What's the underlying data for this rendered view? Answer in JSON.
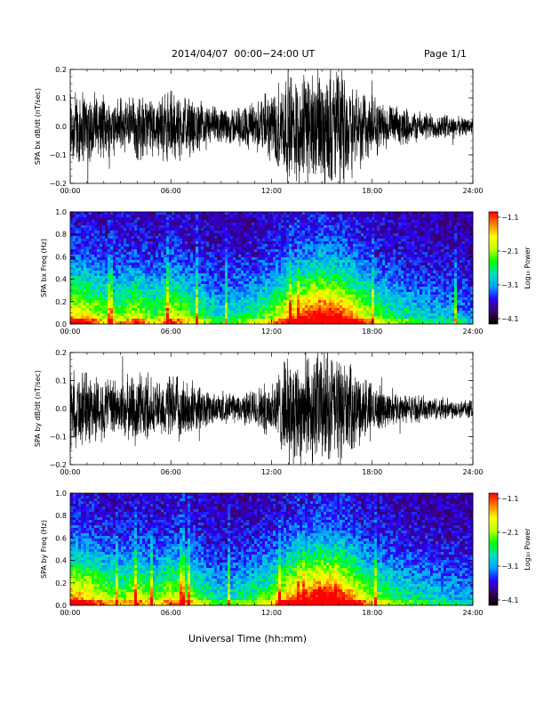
{
  "header": {
    "title": "2014/04/07  00:00−24:00 UT",
    "page": "Page 1/1"
  },
  "footer": {
    "xlabel": "Universal Time (hh:mm)"
  },
  "colors": {
    "waveform": "#000000",
    "colormap": [
      "#000000",
      "#3a0066",
      "#2a00ff",
      "#00a0ff",
      "#00e0c0",
      "#00ff00",
      "#c0ff00",
      "#ffff00",
      "#ff8000",
      "#ff0000"
    ]
  },
  "chart_data": [
    {
      "type": "line",
      "ylabel": "SPA bx dB/dt (nT/sec)",
      "x": [
        "00:00",
        "06:00",
        "12:00",
        "18:00",
        "24:00"
      ],
      "xlim_hours": [
        0,
        24
      ],
      "yticks": [
        "0.2",
        "0.1",
        "0.0",
        "−0.1",
        "−0.2"
      ],
      "ylim": [
        -0.2,
        0.2
      ],
      "activity_hours": [
        0,
        1,
        2,
        3,
        4,
        5,
        6,
        7,
        8,
        9,
        10,
        11,
        12,
        13,
        14,
        15,
        16,
        17,
        18,
        19,
        20,
        21,
        22,
        23,
        24
      ],
      "activity_amplitude": [
        0.15,
        0.13,
        0.1,
        0.1,
        0.12,
        0.09,
        0.13,
        0.1,
        0.08,
        0.06,
        0.07,
        0.09,
        0.12,
        0.2,
        0.2,
        0.2,
        0.2,
        0.16,
        0.11,
        0.07,
        0.06,
        0.05,
        0.045,
        0.035,
        0.03
      ],
      "grid": false
    },
    {
      "type": "heatmap",
      "ylabel": "SPA bx Freq (Hz)",
      "x": [
        "00:00",
        "06:00",
        "12:00",
        "18:00",
        "24:00"
      ],
      "xlim_hours": [
        0,
        24
      ],
      "yticks": [
        "1.0",
        "0.8",
        "0.6",
        "0.4",
        "0.2",
        "0.0"
      ],
      "ylim": [
        0,
        1
      ],
      "colorbar": {
        "label": "Log₁₀ Power",
        "ticks": [
          "−1.1",
          "−2.1",
          "−3.1",
          "−4.1"
        ],
        "range": [
          -4.1,
          -1.1
        ]
      },
      "activity_hours": [
        0,
        1,
        2,
        3,
        4,
        5,
        6,
        7,
        8,
        9,
        10,
        11,
        12,
        13,
        14,
        15,
        16,
        17,
        18,
        19,
        20,
        21,
        22,
        23,
        24
      ],
      "activity_level": [
        0.7,
        0.65,
        0.5,
        0.5,
        0.6,
        0.45,
        0.62,
        0.5,
        0.4,
        0.3,
        0.35,
        0.4,
        0.5,
        0.7,
        0.85,
        0.95,
        0.9,
        0.7,
        0.5,
        0.4,
        0.35,
        0.3,
        0.28,
        0.25,
        0.2
      ]
    },
    {
      "type": "line",
      "ylabel": "SPA by dB/dt (nT/sec)",
      "x": [
        "00:00",
        "06:00",
        "12:00",
        "18:00",
        "24:00"
      ],
      "xlim_hours": [
        0,
        24
      ],
      "yticks": [
        "0.2",
        "0.1",
        "0.0",
        "−0.1",
        "−0.2"
      ],
      "ylim": [
        -0.2,
        0.2
      ],
      "activity_hours": [
        0,
        1,
        2,
        3,
        4,
        5,
        6,
        7,
        8,
        9,
        10,
        11,
        12,
        13,
        14,
        15,
        16,
        17,
        18,
        19,
        20,
        21,
        22,
        23,
        24
      ],
      "activity_amplitude": [
        0.14,
        0.13,
        0.11,
        0.1,
        0.13,
        0.09,
        0.12,
        0.1,
        0.07,
        0.05,
        0.05,
        0.07,
        0.1,
        0.18,
        0.2,
        0.2,
        0.19,
        0.13,
        0.09,
        0.06,
        0.05,
        0.045,
        0.04,
        0.035,
        0.03
      ],
      "grid": false
    },
    {
      "type": "heatmap",
      "ylabel": "SPA by Freq (Hz)",
      "x": [
        "00:00",
        "06:00",
        "12:00",
        "18:00",
        "24:00"
      ],
      "xlim_hours": [
        0,
        24
      ],
      "yticks": [
        "1.0",
        "0.8",
        "0.6",
        "0.4",
        "0.2",
        "0.0"
      ],
      "ylim": [
        0,
        1
      ],
      "colorbar": {
        "label": "Log₁₀ Power",
        "ticks": [
          "−1.1",
          "−2.1",
          "−3.1",
          "−4.1"
        ],
        "range": [
          -4.1,
          -1.1
        ]
      },
      "activity_hours": [
        0,
        1,
        2,
        3,
        4,
        5,
        6,
        7,
        8,
        9,
        10,
        11,
        12,
        13,
        14,
        15,
        16,
        17,
        18,
        19,
        20,
        21,
        22,
        23,
        24
      ],
      "activity_level": [
        0.75,
        0.7,
        0.55,
        0.5,
        0.6,
        0.45,
        0.6,
        0.55,
        0.4,
        0.3,
        0.35,
        0.4,
        0.5,
        0.7,
        0.85,
        0.95,
        0.9,
        0.7,
        0.5,
        0.42,
        0.35,
        0.32,
        0.28,
        0.25,
        0.22
      ]
    }
  ]
}
